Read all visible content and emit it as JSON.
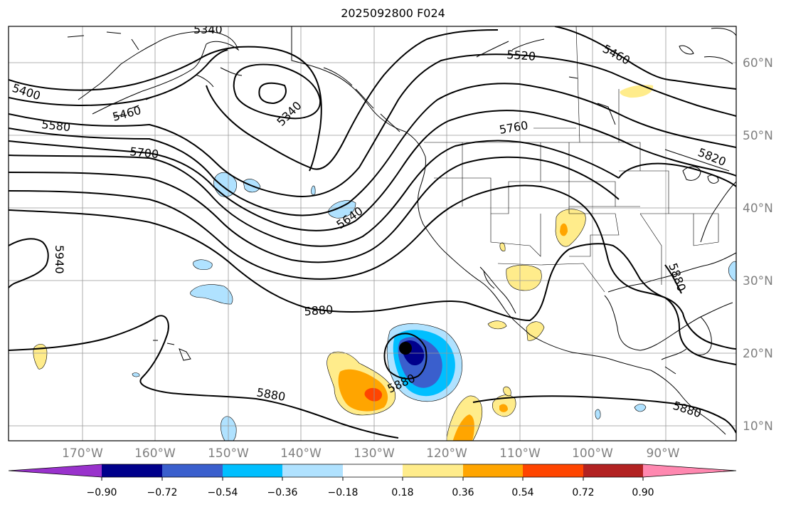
{
  "title": "2025092800 F024",
  "lon_labels": [
    "170°W",
    "160°W",
    "150°W",
    "140°W",
    "130°W",
    "120°W",
    "110°W",
    "100°W",
    "90°W"
  ],
  "lat_labels": [
    "60°N",
    "50°N",
    "40°N",
    "30°N",
    "20°N",
    "10°N"
  ],
  "contour_labels": [
    "5340",
    "5340",
    "5400",
    "5460",
    "5460",
    "5520",
    "5580",
    "5640",
    "5700",
    "5760",
    "5820",
    "5880",
    "5880",
    "5880",
    "5880",
    "5880",
    "5940"
  ],
  "colorbar": {
    "ticks": [
      "−0.90",
      "−0.72",
      "−0.54",
      "−0.36",
      "−0.18",
      "0.18",
      "0.36",
      "0.54",
      "0.72",
      "0.90"
    ],
    "colors": {
      "under": "#9932cc",
      "bins": [
        "#00008b",
        "#3a5fcd",
        "#00bfff",
        "#b0e2ff",
        "#ffffff",
        "#ffec8b",
        "#ffa500",
        "#ff4500",
        "#b22222"
      ],
      "over": "#ff88b0"
    }
  },
  "colors": {
    "frame": "#000000",
    "grid": "#999999",
    "contour": "#000000",
    "coast": "#000000",
    "axis_text": "#808080"
  }
}
